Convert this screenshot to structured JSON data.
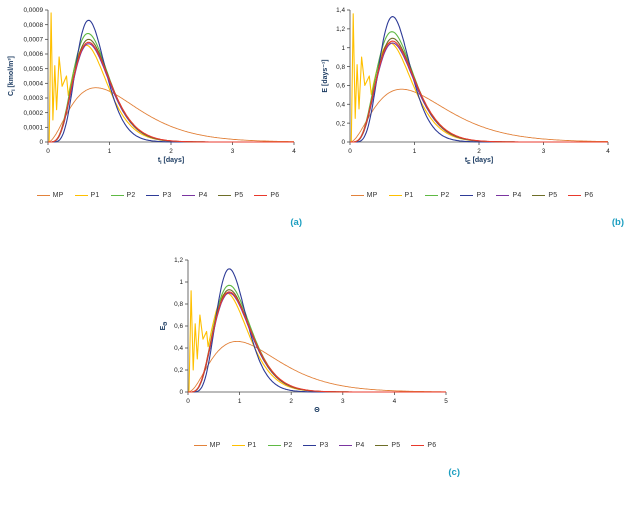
{
  "figure": {
    "captions": {
      "a": "(a)",
      "b": "(b)",
      "c": "(c)"
    },
    "caption_color": "#1b9ec0",
    "axis_title_color": "#17375e",
    "axis_line_color": "#4a4a4a",
    "tick_text_color": "#1a1a1a"
  },
  "legend": {
    "items": [
      {
        "label": "MP",
        "color": "#e2823b"
      },
      {
        "label": "P1",
        "color": "#ffc000"
      },
      {
        "label": "P2",
        "color": "#5fb944"
      },
      {
        "label": "P3",
        "color": "#2e3b97"
      },
      {
        "label": "P4",
        "color": "#7a35a0"
      },
      {
        "label": "P5",
        "color": "#6e6e28"
      },
      {
        "label": "P6",
        "color": "#e8392c"
      }
    ]
  },
  "chart_data": [
    {
      "type": "line",
      "title": "",
      "ylabel": {
        "pre": "C",
        "sub": "i",
        "post": " [kmol/m³]"
      },
      "xlabel": {
        "pre": "t",
        "sub": "i",
        "post": " [days]"
      },
      "xlim": [
        0,
        4
      ],
      "ylim": [
        0,
        0.0009
      ],
      "grid": false,
      "legend_position": "bottom",
      "xticks": [
        0,
        1,
        2,
        3,
        4
      ],
      "yticks": [
        {
          "v": 0,
          "label": "0"
        },
        {
          "v": 0.0001,
          "label": "0,0001"
        },
        {
          "v": 0.0002,
          "label": "0,0002"
        },
        {
          "v": 0.0003,
          "label": "0,0003"
        },
        {
          "v": 0.0004,
          "label": "0,0004"
        },
        {
          "v": 0.0005,
          "label": "0,0005"
        },
        {
          "v": 0.0006,
          "label": "0,0006"
        },
        {
          "v": 0.0007,
          "label": "0,0007"
        },
        {
          "v": 0.0008,
          "label": "0,0008"
        },
        {
          "v": 0.0009,
          "label": "0,0009"
        }
      ],
      "series": [
        {
          "name": "MP",
          "color": "#e2823b",
          "peak_x": 0.78,
          "peak_y": 0.00037,
          "shape": 2.0
        },
        {
          "name": "P1",
          "color": "#ffc000",
          "peak_x": 0.62,
          "peak_y": 0.00066,
          "shape": 4.5,
          "spikes": [
            [
              0.02,
              0
            ],
            [
              0.05,
              0.00088
            ],
            [
              0.08,
              0.00015
            ],
            [
              0.11,
              0.00052
            ],
            [
              0.14,
              0.00022
            ],
            [
              0.18,
              0.00058
            ],
            [
              0.23,
              0.00038
            ],
            [
              0.3,
              0.00045
            ]
          ]
        },
        {
          "name": "P2",
          "color": "#5fb944",
          "peak_x": 0.65,
          "peak_y": 0.00074,
          "shape": 5.0
        },
        {
          "name": "P3",
          "color": "#2e3b97",
          "peak_x": 0.66,
          "peak_y": 0.00083,
          "shape": 7.5
        },
        {
          "name": "P4",
          "color": "#7a35a0",
          "peak_x": 0.66,
          "peak_y": 0.00067,
          "shape": 5.0
        },
        {
          "name": "P5",
          "color": "#6e6e28",
          "peak_x": 0.66,
          "peak_y": 0.0007,
          "shape": 5.0
        },
        {
          "name": "P6",
          "color": "#e8392c",
          "peak_x": 0.66,
          "peak_y": 0.00068,
          "shape": 4.8
        }
      ]
    },
    {
      "type": "line",
      "title": "",
      "ylabel": {
        "pre": "E",
        "sub": "",
        "post": " [days⁻¹]"
      },
      "xlabel": {
        "pre": "t",
        "sub": "E",
        "post": " [days]"
      },
      "xlim": [
        0,
        4
      ],
      "ylim": [
        0,
        1.4
      ],
      "grid": false,
      "legend_position": "bottom",
      "xticks": [
        0,
        1,
        2,
        3,
        4
      ],
      "yticks": [
        {
          "v": 0,
          "label": "0"
        },
        {
          "v": 0.2,
          "label": "0,2"
        },
        {
          "v": 0.4,
          "label": "0,4"
        },
        {
          "v": 0.6,
          "label": "0,6"
        },
        {
          "v": 0.8,
          "label": "0,8"
        },
        {
          "v": 1.0,
          "label": "1"
        },
        {
          "v": 1.2,
          "label": "1,2"
        },
        {
          "v": 1.4,
          "label": "1,4"
        }
      ],
      "series": [
        {
          "name": "MP",
          "color": "#e2823b",
          "peak_x": 0.8,
          "peak_y": 0.56,
          "shape": 2.0
        },
        {
          "name": "P1",
          "color": "#ffc000",
          "peak_x": 0.62,
          "peak_y": 1.05,
          "shape": 4.5,
          "spikes": [
            [
              0.02,
              0
            ],
            [
              0.05,
              1.36
            ],
            [
              0.08,
              0.25
            ],
            [
              0.11,
              0.82
            ],
            [
              0.14,
              0.35
            ],
            [
              0.18,
              0.9
            ],
            [
              0.23,
              0.6
            ],
            [
              0.3,
              0.7
            ]
          ]
        },
        {
          "name": "P2",
          "color": "#5fb944",
          "peak_x": 0.65,
          "peak_y": 1.17,
          "shape": 5.0
        },
        {
          "name": "P3",
          "color": "#2e3b97",
          "peak_x": 0.66,
          "peak_y": 1.33,
          "shape": 7.5
        },
        {
          "name": "P4",
          "color": "#7a35a0",
          "peak_x": 0.66,
          "peak_y": 1.05,
          "shape": 5.0
        },
        {
          "name": "P5",
          "color": "#6e6e28",
          "peak_x": 0.66,
          "peak_y": 1.1,
          "shape": 5.0
        },
        {
          "name": "P6",
          "color": "#e8392c",
          "peak_x": 0.66,
          "peak_y": 1.07,
          "shape": 4.8
        }
      ]
    },
    {
      "type": "line",
      "title": "",
      "ylabel": {
        "pre": "E",
        "sub": "Θ",
        "post": ""
      },
      "xlabel": {
        "pre": "Θ",
        "sub": "",
        "post": ""
      },
      "xlim": [
        0,
        5
      ],
      "ylim": [
        0,
        1.2
      ],
      "grid": false,
      "legend_position": "bottom",
      "xticks": [
        0,
        1,
        2,
        3,
        4,
        5
      ],
      "yticks": [
        {
          "v": 0,
          "label": "0"
        },
        {
          "v": 0.2,
          "label": "0,2"
        },
        {
          "v": 0.4,
          "label": "0,4"
        },
        {
          "v": 0.6,
          "label": "0,6"
        },
        {
          "v": 0.8,
          "label": "0,8"
        },
        {
          "v": 1.0,
          "label": "1"
        },
        {
          "v": 1.2,
          "label": "1,2"
        }
      ],
      "series": [
        {
          "name": "MP",
          "color": "#e2823b",
          "peak_x": 0.95,
          "peak_y": 0.46,
          "shape": 2.1
        },
        {
          "name": "P1",
          "color": "#ffc000",
          "peak_x": 0.75,
          "peak_y": 0.9,
          "shape": 4.5,
          "spikes": [
            [
              0.02,
              0
            ],
            [
              0.06,
              0.92
            ],
            [
              0.1,
              0.2
            ],
            [
              0.14,
              0.62
            ],
            [
              0.18,
              0.3
            ],
            [
              0.23,
              0.7
            ],
            [
              0.29,
              0.48
            ],
            [
              0.36,
              0.55
            ]
          ]
        },
        {
          "name": "P2",
          "color": "#5fb944",
          "peak_x": 0.8,
          "peak_y": 0.97,
          "shape": 5.0
        },
        {
          "name": "P3",
          "color": "#2e3b97",
          "peak_x": 0.8,
          "peak_y": 1.12,
          "shape": 7.5
        },
        {
          "name": "P4",
          "color": "#7a35a0",
          "peak_x": 0.8,
          "peak_y": 0.9,
          "shape": 5.0
        },
        {
          "name": "P5",
          "color": "#6e6e28",
          "peak_x": 0.8,
          "peak_y": 0.93,
          "shape": 5.0
        },
        {
          "name": "P6",
          "color": "#e8392c",
          "peak_x": 0.8,
          "peak_y": 0.91,
          "shape": 4.8
        }
      ]
    }
  ]
}
